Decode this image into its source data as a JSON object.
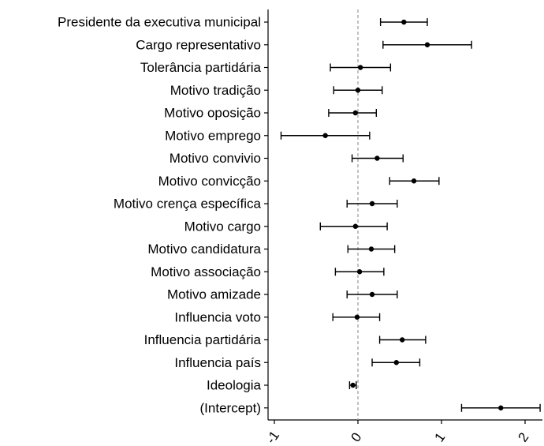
{
  "chart_data": {
    "type": "forest",
    "categories": [
      "Presidente da executiva municipal",
      "Cargo representativo",
      "Tolerância partidária",
      "Motivo tradição",
      "Motivo oposição",
      "Motivo emprego",
      "Motivo convivio",
      "Motivo convicção",
      "Motivo crença específica",
      "Motivo cargo",
      "Motivo candidatura",
      "Motivo associação",
      "Motivo amizade",
      "Influencia voto",
      "Influencia partidária",
      "Influencia país",
      "Ideologia",
      "(Intercept)"
    ],
    "estimates": [
      0.55,
      0.83,
      0.03,
      0.0,
      -0.03,
      -0.39,
      0.23,
      0.67,
      0.17,
      -0.03,
      0.16,
      0.02,
      0.17,
      -0.01,
      0.53,
      0.46,
      -0.06,
      1.71
    ],
    "lower": [
      0.27,
      0.3,
      -0.33,
      -0.29,
      -0.35,
      -0.92,
      -0.07,
      0.38,
      -0.13,
      -0.45,
      -0.12,
      -0.27,
      -0.13,
      -0.3,
      0.26,
      0.17,
      -0.1,
      1.24
    ],
    "upper": [
      0.83,
      1.36,
      0.39,
      0.29,
      0.22,
      0.14,
      0.54,
      0.97,
      0.47,
      0.35,
      0.44,
      0.31,
      0.47,
      0.26,
      0.81,
      0.74,
      -0.02,
      2.18
    ],
    "xticks": [
      -1,
      0,
      1,
      2
    ],
    "xtick_labels": [
      "-1",
      "0",
      "1",
      "2"
    ],
    "xlim": [
      -1.05,
      2.2
    ],
    "reference_line": 0,
    "reference_line_style": "dashed",
    "xlabel": "",
    "ylabel": "",
    "title": ""
  },
  "colors": {
    "point": "#000000",
    "errorbar": "#000000",
    "reference_line": "#9a9a9a",
    "axis": "#000000",
    "background": "#ffffff"
  }
}
